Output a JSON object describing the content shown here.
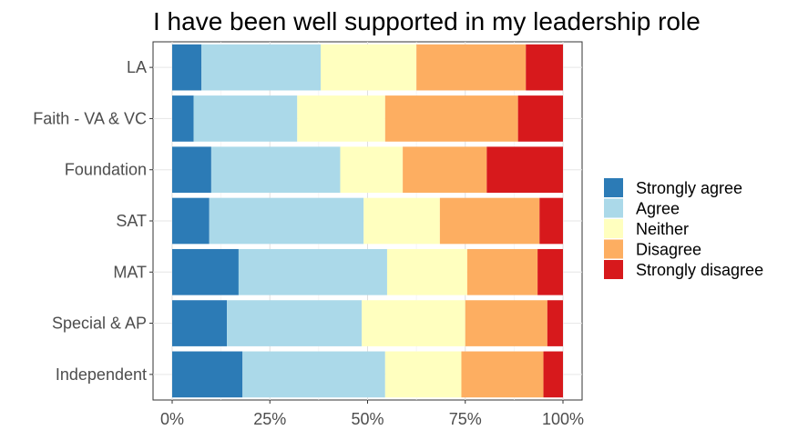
{
  "chart_data": {
    "type": "bar",
    "orientation": "horizontal",
    "stacked": "percent",
    "title": "I have been well supported in my leadership role",
    "xlabel": "",
    "ylabel": "",
    "xlim": [
      0,
      100
    ],
    "x_ticks": [
      0,
      25,
      50,
      75,
      100
    ],
    "x_tick_labels": [
      "0%",
      "25%",
      "50%",
      "75%",
      "100%"
    ],
    "grid": true,
    "legend_position": "right",
    "categories": [
      "LA",
      "Faith - VA & VC",
      "Foundation",
      "SAT",
      "MAT",
      "Special & AP",
      "Independent"
    ],
    "series": [
      {
        "name": "Strongly agree",
        "color": "#2c7bb6",
        "values": [
          7.5,
          5.5,
          10.0,
          9.5,
          17.0,
          14.0,
          18.0
        ]
      },
      {
        "name": "Agree",
        "color": "#abd9e9",
        "values": [
          30.5,
          26.5,
          33.0,
          39.5,
          38.0,
          34.5,
          36.5
        ]
      },
      {
        "name": "Neither",
        "color": "#ffffbf",
        "values": [
          24.5,
          22.5,
          16.0,
          19.5,
          20.5,
          26.5,
          19.5
        ]
      },
      {
        "name": "Disagree",
        "color": "#fdae61",
        "values": [
          28.0,
          34.0,
          21.5,
          25.5,
          18.0,
          21.0,
          21.0
        ]
      },
      {
        "name": "Strongly disagree",
        "color": "#d7191c",
        "values": [
          9.5,
          11.5,
          19.5,
          6.0,
          6.5,
          4.0,
          5.0
        ]
      }
    ]
  }
}
